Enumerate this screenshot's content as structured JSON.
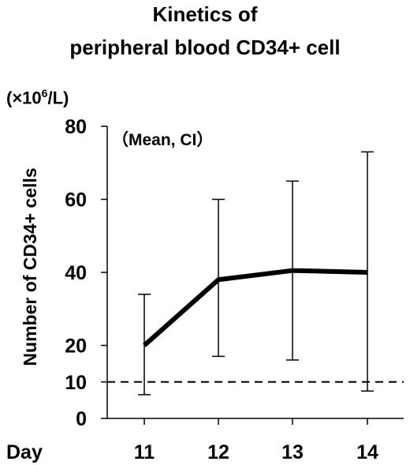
{
  "chart_data": {
    "type": "line",
    "title_lines": [
      "Kinetics of",
      "peripheral blood CD34+ cell"
    ],
    "unit_label": {
      "prefix": "(×10",
      "exponent": "6",
      "suffix": "/L)"
    },
    "ylabel": "Number of CD34+ cells",
    "x_axis_title": "Day",
    "annotation": "（Mean, CI）",
    "x": [
      "11",
      "12",
      "13",
      "14"
    ],
    "y_ticks": [
      "0",
      "10",
      "20",
      "40",
      "60",
      "80"
    ],
    "ylim": [
      0,
      80
    ],
    "reference_line": {
      "value": 10,
      "style": "dashed"
    },
    "series": [
      {
        "values": [
          20,
          38,
          40.5,
          40
        ],
        "ci_upper": [
          34,
          60,
          65,
          73
        ],
        "ci_lower": [
          6.5,
          17,
          16,
          7.5
        ]
      }
    ],
    "grid": false,
    "legend": "none"
  }
}
